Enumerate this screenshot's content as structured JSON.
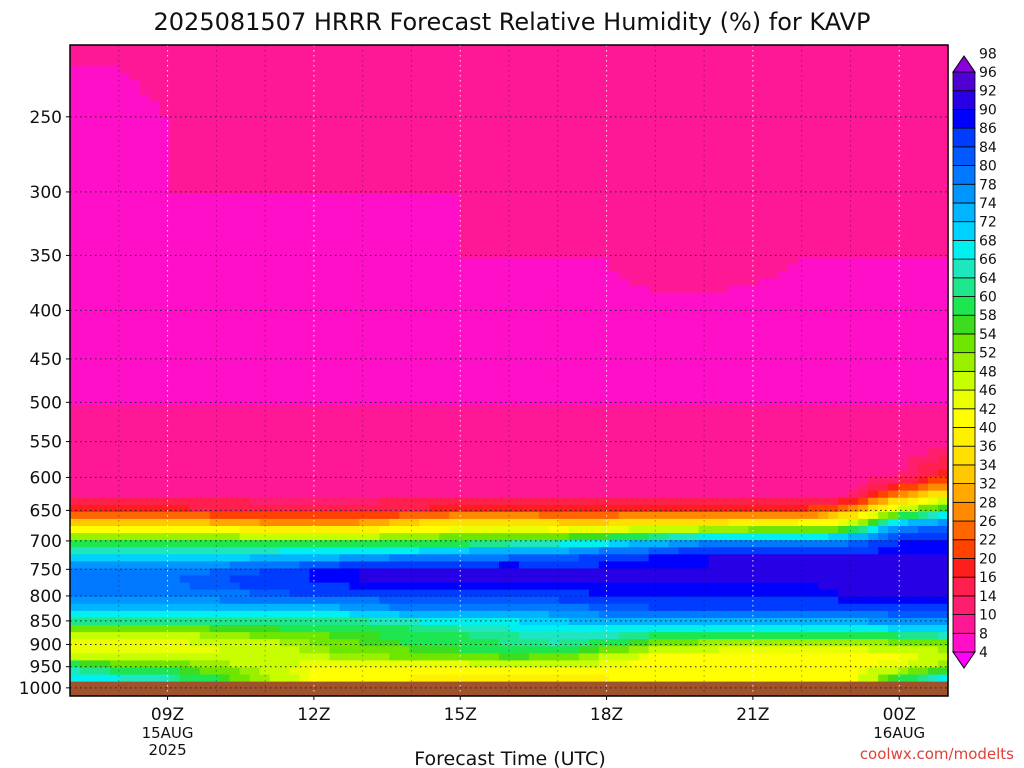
{
  "chart_data": {
    "type": "heatmap",
    "title": "2025081507 HRRR Forecast Relative Humidity (%) for KAVP",
    "xlabel": "Forecast Time (UTC)",
    "ylabel": "",
    "credit": "coolwx.com/modelts",
    "x_hours": [
      7,
      8,
      9,
      10,
      11,
      12,
      13,
      14,
      15,
      16,
      17,
      18,
      19,
      20,
      21,
      22,
      23,
      24,
      25
    ],
    "x_range_hours": [
      7,
      25
    ],
    "x_ticks": [
      {
        "hour": 9,
        "label": "09Z",
        "sub": [
          "15AUG",
          "2025"
        ]
      },
      {
        "hour": 12,
        "label": "12Z",
        "sub": []
      },
      {
        "hour": 15,
        "label": "15Z",
        "sub": []
      },
      {
        "hour": 18,
        "label": "18Z",
        "sub": []
      },
      {
        "hour": 21,
        "label": "21Z",
        "sub": []
      },
      {
        "hour": 24,
        "label": "00Z",
        "sub": [
          "16AUG"
        ]
      }
    ],
    "y_levels_hpa": [
      1000,
      950,
      900,
      850,
      800,
      750,
      700,
      650,
      600,
      550,
      500,
      450,
      400,
      350,
      300,
      250
    ],
    "y_tick_labels": [
      "250",
      "300",
      "350",
      "400",
      "450",
      "500",
      "550",
      "600",
      "650",
      "700",
      "750",
      "800",
      "850",
      "900",
      "950",
      "1000"
    ],
    "y_range_hpa": [
      1020,
      210
    ],
    "y_scale": "log",
    "below_ground_color": "#a0522d",
    "grid": true,
    "colorbar_levels": [
      4,
      8,
      10,
      14,
      16,
      20,
      22,
      26,
      28,
      32,
      34,
      36,
      40,
      42,
      46,
      48,
      52,
      54,
      58,
      60,
      64,
      66,
      68,
      72,
      74,
      78,
      80,
      84,
      86,
      90,
      92,
      96,
      98
    ],
    "colorbar_colors": [
      "#ff00ff",
      "#ff10c8",
      "#ff1896",
      "#ff1e6e",
      "#ff2050",
      "#ff1e1e",
      "#ff4200",
      "#ff6600",
      "#ff8a00",
      "#ffa800",
      "#ffc800",
      "#ffe000",
      "#fff000",
      "#ffff00",
      "#eaff00",
      "#c8ff00",
      "#9bf000",
      "#6ee600",
      "#3cdc1e",
      "#1ee650",
      "#1ee68c",
      "#1ee6be",
      "#00f0f0",
      "#00d2ff",
      "#00b4ff",
      "#0096ff",
      "#0078ff",
      "#005aff",
      "#003cff",
      "#0000ff",
      "#2800e6",
      "#5000d2",
      "#8c00dc"
    ],
    "rh_rows": [
      {
        "p": 1000,
        "values": [
          null,
          null,
          null,
          null,
          null,
          null,
          null,
          null,
          null,
          null,
          null,
          null,
          null,
          null,
          null,
          null,
          null,
          null,
          null
        ]
      },
      {
        "p": 975,
        "values": [
          70,
          68,
          66,
          60,
          52,
          46,
          44,
          42,
          40,
          40,
          40,
          42,
          42,
          42,
          42,
          42,
          44,
          60,
          70
        ]
      },
      {
        "p": 950,
        "values": [
          64,
          60,
          58,
          54,
          50,
          46,
          44,
          44,
          44,
          46,
          48,
          46,
          44,
          44,
          44,
          44,
          44,
          48,
          54
        ]
      },
      {
        "p": 925,
        "values": [
          50,
          50,
          48,
          48,
          50,
          52,
          54,
          56,
          58,
          60,
          58,
          52,
          46,
          44,
          44,
          44,
          44,
          46,
          50
        ]
      },
      {
        "p": 900,
        "values": [
          46,
          46,
          46,
          48,
          50,
          54,
          58,
          60,
          62,
          64,
          66,
          62,
          56,
          52,
          50,
          50,
          50,
          52,
          56
        ]
      },
      {
        "p": 875,
        "values": [
          52,
          52,
          52,
          54,
          56,
          58,
          60,
          62,
          64,
          66,
          68,
          68,
          66,
          64,
          64,
          64,
          66,
          68,
          70
        ]
      },
      {
        "p": 850,
        "values": [
          66,
          66,
          66,
          66,
          66,
          66,
          66,
          68,
          70,
          72,
          74,
          76,
          76,
          76,
          76,
          76,
          78,
          80,
          80
        ]
      },
      {
        "p": 825,
        "values": [
          76,
          76,
          76,
          76,
          76,
          76,
          78,
          80,
          82,
          82,
          82,
          84,
          86,
          86,
          86,
          86,
          88,
          88,
          88
        ]
      },
      {
        "p": 800,
        "values": [
          80,
          80,
          80,
          82,
          84,
          86,
          86,
          88,
          88,
          88,
          88,
          90,
          90,
          90,
          90,
          90,
          92,
          92,
          92
        ]
      },
      {
        "p": 775,
        "values": [
          84,
          84,
          84,
          86,
          88,
          90,
          92,
          92,
          92,
          92,
          92,
          92,
          92,
          92,
          92,
          92,
          94,
          96,
          94
        ]
      },
      {
        "p": 750,
        "values": [
          82,
          82,
          82,
          84,
          86,
          90,
          92,
          94,
          94,
          94,
          92,
          92,
          92,
          92,
          92,
          92,
          92,
          94,
          94
        ]
      },
      {
        "p": 725,
        "values": [
          70,
          70,
          70,
          70,
          72,
          74,
          76,
          78,
          80,
          82,
          84,
          86,
          90,
          92,
          92,
          92,
          92,
          92,
          92
        ]
      },
      {
        "p": 700,
        "values": [
          58,
          58,
          58,
          58,
          58,
          58,
          58,
          58,
          60,
          62,
          64,
          68,
          74,
          78,
          80,
          80,
          82,
          90,
          92
        ]
      },
      {
        "p": 675,
        "values": [
          38,
          38,
          38,
          38,
          36,
          36,
          36,
          40,
          42,
          42,
          40,
          40,
          42,
          44,
          46,
          48,
          52,
          80,
          84
        ]
      },
      {
        "p": 650,
        "values": [
          22,
          22,
          22,
          20,
          18,
          18,
          18,
          20,
          22,
          22,
          22,
          22,
          22,
          22,
          22,
          22,
          30,
          50,
          64
        ]
      },
      {
        "p": 625,
        "values": [
          14,
          14,
          14,
          14,
          14,
          14,
          14,
          14,
          14,
          14,
          14,
          14,
          14,
          14,
          14,
          14,
          14,
          30,
          40
        ]
      },
      {
        "p": 600,
        "values": [
          12,
          12,
          12,
          12,
          12,
          12,
          12,
          12,
          12,
          12,
          12,
          12,
          12,
          12,
          12,
          12,
          12,
          14,
          22
        ]
      },
      {
        "p": 550,
        "values": [
          12,
          12,
          12,
          12,
          12,
          12,
          12,
          12,
          12,
          12,
          12,
          12,
          12,
          12,
          12,
          12,
          12,
          12,
          12
        ]
      },
      {
        "p": 500,
        "values": [
          10,
          10,
          10,
          10,
          10,
          10,
          10,
          10,
          10,
          10,
          10,
          10,
          10,
          10,
          10,
          10,
          10,
          10,
          10
        ]
      },
      {
        "p": 450,
        "values": [
          9,
          9,
          9,
          9,
          9,
          9,
          9,
          8,
          9,
          9,
          9,
          9,
          9,
          9,
          9,
          9,
          9,
          9,
          9
        ]
      },
      {
        "p": 400,
        "values": [
          9,
          9,
          9,
          9,
          9,
          9,
          9,
          9,
          9,
          9,
          9,
          9,
          9,
          9,
          9,
          9,
          9,
          9,
          9
        ]
      },
      {
        "p": 350,
        "values": [
          9,
          9,
          9,
          9,
          9,
          9,
          9,
          9,
          10,
          10,
          10,
          10,
          12,
          12,
          11,
          10,
          10,
          10,
          10
        ]
      },
      {
        "p": 300,
        "values": [
          10,
          10,
          10,
          10,
          10,
          10,
          10,
          10,
          10,
          11,
          12,
          13,
          14,
          14,
          14,
          13,
          12,
          12,
          12
        ]
      },
      {
        "p": 250,
        "values": [
          9,
          9,
          10,
          10,
          10,
          10,
          10,
          10,
          10,
          10,
          10,
          11,
          11,
          12,
          12,
          11,
          10,
          10,
          10
        ]
      },
      {
        "p": 220,
        "values": [
          10,
          10,
          11,
          12,
          13,
          13,
          12,
          11,
          11,
          11,
          11,
          11,
          11,
          11,
          11,
          11,
          11,
          11,
          11
        ]
      }
    ]
  }
}
